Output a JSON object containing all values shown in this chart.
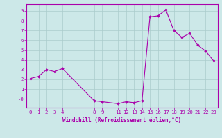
{
  "x": [
    0,
    1,
    2,
    3,
    4,
    8,
    9,
    11,
    12,
    13,
    14,
    15,
    16,
    17,
    18,
    19,
    20,
    21,
    22,
    23
  ],
  "y": [
    2.1,
    2.3,
    3.0,
    2.8,
    3.1,
    -0.2,
    -0.3,
    -0.5,
    -0.3,
    -0.4,
    -0.2,
    8.4,
    8.5,
    9.1,
    7.0,
    6.3,
    6.7,
    5.5,
    4.9,
    3.9
  ],
  "x_ticks": [
    0,
    1,
    2,
    3,
    4,
    8,
    9,
    11,
    12,
    13,
    14,
    15,
    16,
    17,
    18,
    19,
    20,
    21,
    22,
    23
  ],
  "y_ticks": [
    0,
    1,
    2,
    3,
    4,
    5,
    6,
    7,
    8,
    9
  ],
  "y_tick_labels": [
    "-0",
    "1",
    "2",
    "3",
    "4",
    "5",
    "6",
    "7",
    "8",
    "9"
  ],
  "ylim": [
    -0.9,
    9.7
  ],
  "xlim": [
    -0.5,
    23.5
  ],
  "line_color": "#aa00aa",
  "marker_color": "#aa00aa",
  "bg_color": "#cce8e8",
  "grid_color": "#aacccc",
  "xlabel": "Windchill (Refroidissement éolien,°C)",
  "xlabel_color": "#aa00aa",
  "tick_color": "#aa00aa",
  "axis_color": "#aa00aa",
  "tick_fontsize": 5.2,
  "xlabel_fontsize": 5.5
}
